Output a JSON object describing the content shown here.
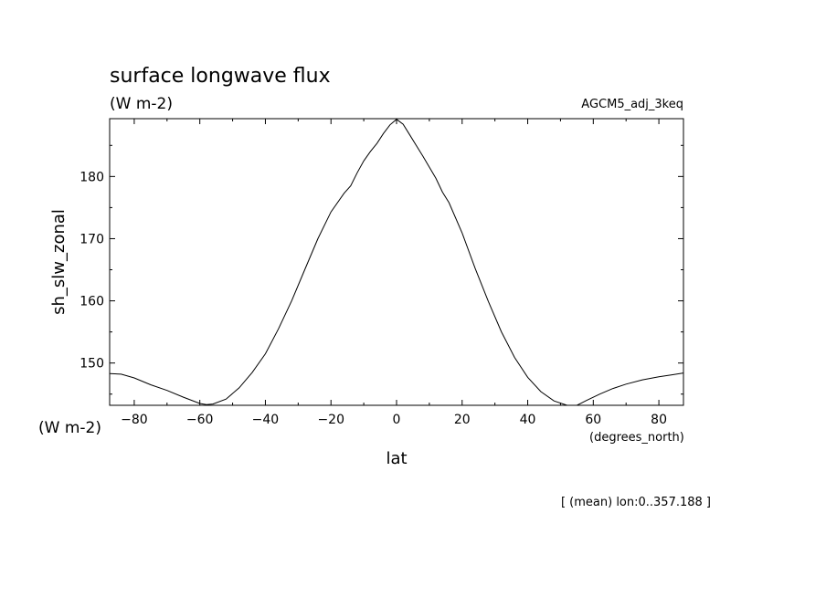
{
  "chart_data": {
    "type": "line",
    "title": "surface longwave flux",
    "subtitle_units": "(W m-2)",
    "dataset_label": "AGCM5_adj_3keq",
    "xlabel": "lat",
    "xunits": "(degrees_north)",
    "ylabel": "sh_slw_zonal",
    "yunits": "(W m-2)",
    "note": "[ (mean) lon:0..357.188 ]",
    "xlim": [
      -87.5,
      87.5
    ],
    "ylim": [
      143.2,
      189.3
    ],
    "xticks": [
      -80,
      -60,
      -40,
      -20,
      0,
      20,
      40,
      60,
      80
    ],
    "yticks": [
      150,
      160,
      170,
      180
    ],
    "grid": false,
    "series": [
      {
        "x": [
          -87.5,
          -84,
          -80,
          -75,
          -70,
          -65,
          -60,
          -58,
          -56,
          -52,
          -48,
          -44,
          -40,
          -36,
          -32,
          -28,
          -24,
          -20,
          -16,
          -14,
          -12,
          -10,
          -8,
          -6,
          -4,
          -2,
          0,
          2,
          4,
          6,
          8,
          10,
          12,
          14,
          16,
          20,
          24,
          28,
          32,
          36,
          40,
          44,
          48,
          52,
          55,
          58,
          62,
          66,
          70,
          75,
          80,
          84,
          87.5
        ],
        "y": [
          148.3,
          148.2,
          147.6,
          146.5,
          145.6,
          144.5,
          143.5,
          143.3,
          143.4,
          144.2,
          146.0,
          148.5,
          151.5,
          155.5,
          160.0,
          165.0,
          170.0,
          174.3,
          177.3,
          178.5,
          180.6,
          182.5,
          184.0,
          185.3,
          186.9,
          188.3,
          189.2,
          188.4,
          186.7,
          185.0,
          183.3,
          181.5,
          179.7,
          177.5,
          175.8,
          170.9,
          165.2,
          159.9,
          155.0,
          150.9,
          147.7,
          145.4,
          143.9,
          143.2,
          143.2,
          144.0,
          145.0,
          145.9,
          146.6,
          147.3,
          147.8,
          148.1,
          148.4
        ]
      }
    ]
  }
}
